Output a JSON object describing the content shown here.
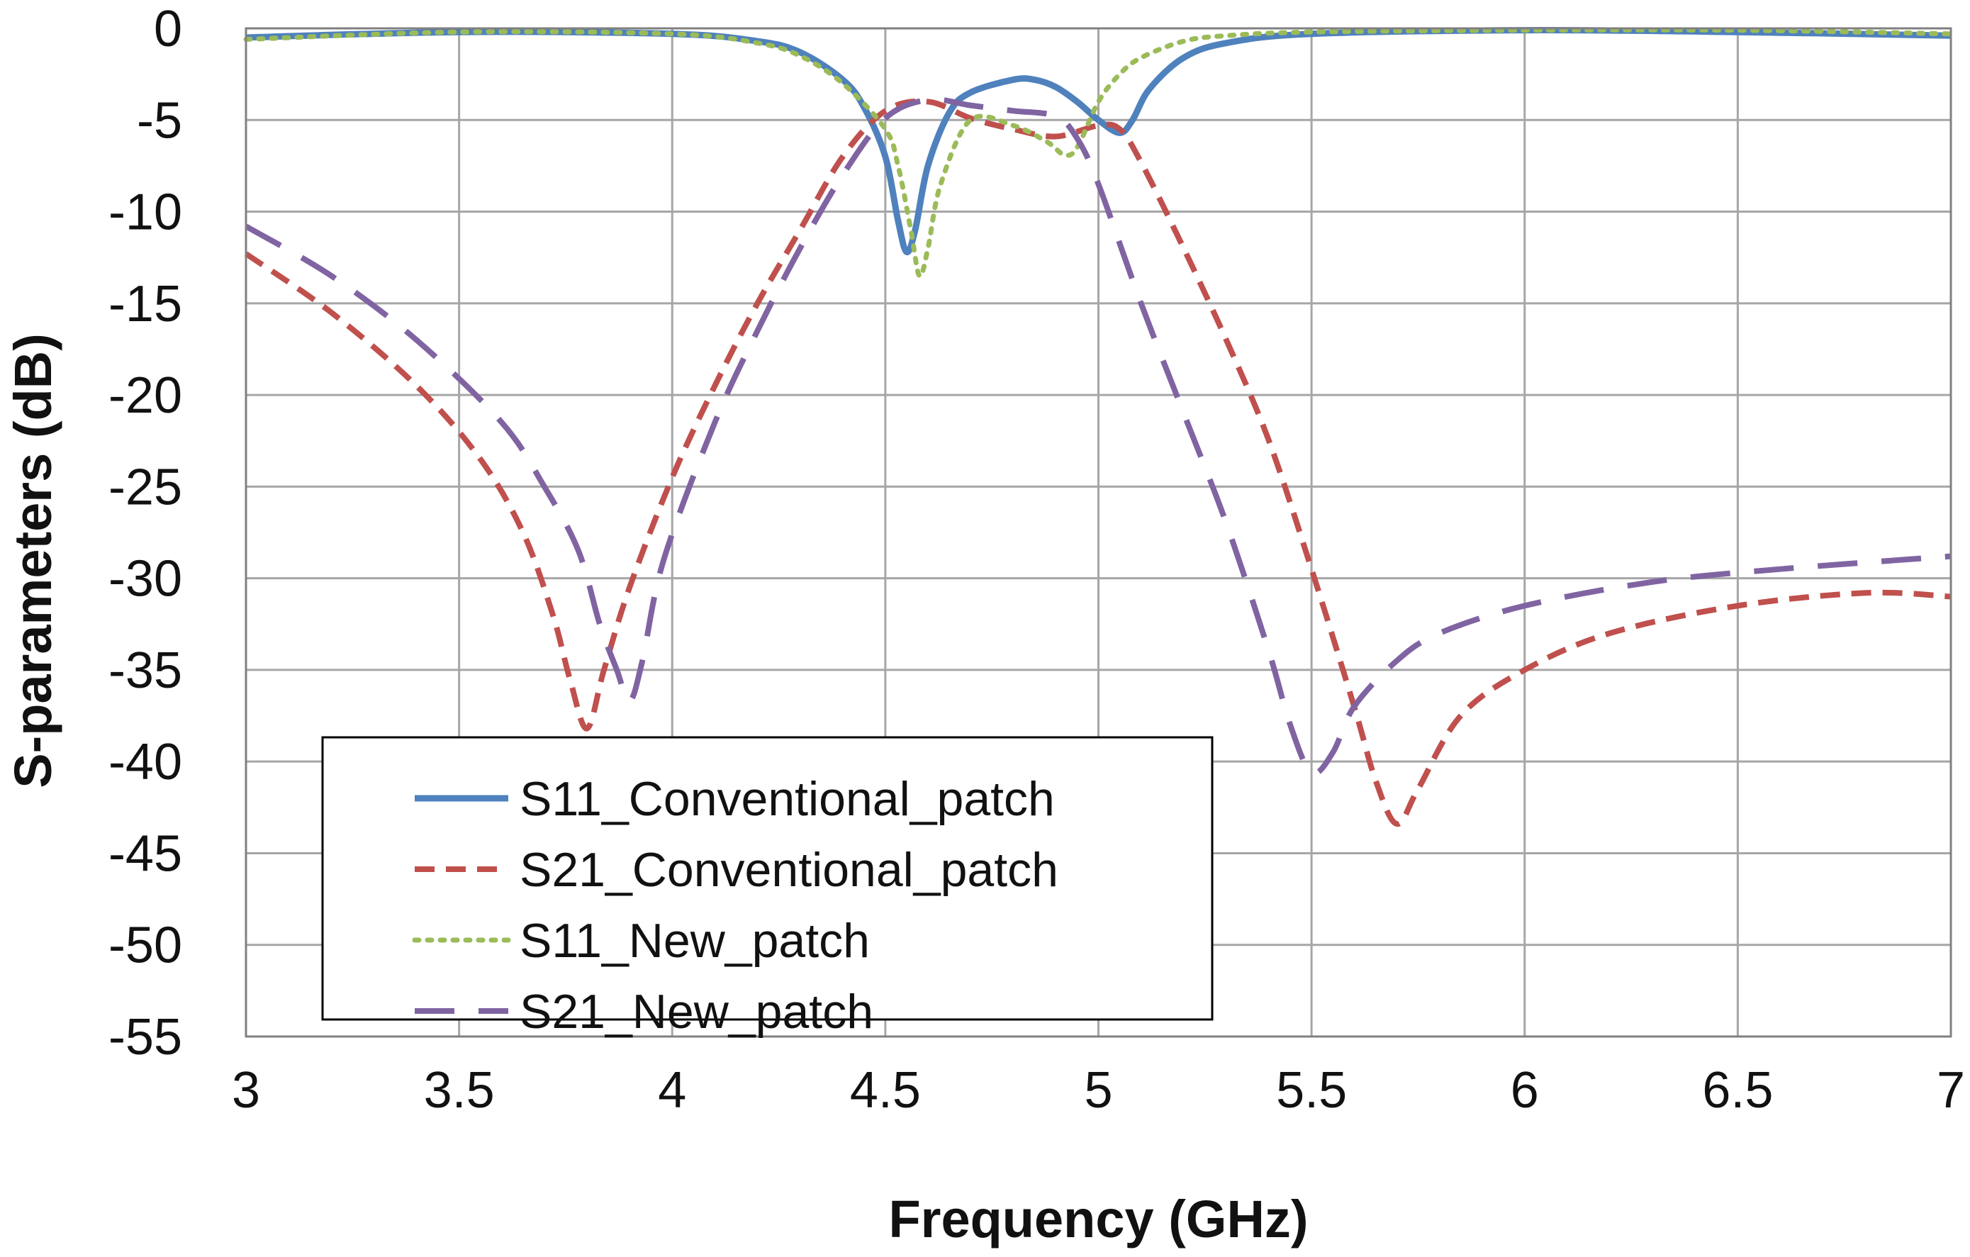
{
  "chart_data": {
    "type": "line",
    "title": "",
    "xlabel": "Frequency (GHz)",
    "ylabel": "S-parameters (dB)",
    "xlim": [
      3,
      7
    ],
    "ylim": [
      -55,
      0
    ],
    "x_ticks": [
      3,
      3.5,
      4,
      4.5,
      5,
      5.5,
      6,
      6.5,
      7
    ],
    "y_ticks": [
      0,
      -5,
      -10,
      -15,
      -20,
      -25,
      -30,
      -35,
      -40,
      -45,
      -50,
      -55
    ],
    "x_tick_labels": [
      "3",
      "3.5",
      "4",
      "4.5",
      "5",
      "5.5",
      "6",
      "6.5",
      "7"
    ],
    "y_tick_labels": [
      "0",
      "-5",
      "-10",
      "-15",
      "-20",
      "-25",
      "-30",
      "-35",
      "-40",
      "-45",
      "-50",
      "-55"
    ],
    "grid": true,
    "legend_position": "lower-left",
    "series": [
      {
        "name": "S11_Conventional_patch",
        "color": "#4f81bd",
        "dash": "solid",
        "points": [
          [
            3.0,
            -0.5
          ],
          [
            3.5,
            -0.2
          ],
          [
            4.0,
            -0.3
          ],
          [
            4.2,
            -0.7
          ],
          [
            4.3,
            -1.3
          ],
          [
            4.4,
            -2.8
          ],
          [
            4.45,
            -4.3
          ],
          [
            4.5,
            -7.0
          ],
          [
            4.53,
            -10.5
          ],
          [
            4.55,
            -12.2
          ],
          [
            4.57,
            -11.0
          ],
          [
            4.6,
            -7.5
          ],
          [
            4.65,
            -4.6
          ],
          [
            4.7,
            -3.5
          ],
          [
            4.8,
            -2.8
          ],
          [
            4.85,
            -2.8
          ],
          [
            4.9,
            -3.2
          ],
          [
            4.95,
            -4.0
          ],
          [
            5.0,
            -5.0
          ],
          [
            5.05,
            -5.7
          ],
          [
            5.08,
            -5.0
          ],
          [
            5.12,
            -3.3
          ],
          [
            5.2,
            -1.6
          ],
          [
            5.3,
            -0.8
          ],
          [
            5.5,
            -0.3
          ],
          [
            6.0,
            -0.1
          ],
          [
            6.5,
            -0.2
          ],
          [
            7.0,
            -0.4
          ]
        ]
      },
      {
        "name": "S21_Conventional_patch",
        "color": "#c0504d",
        "dash": "short-dash",
        "points": [
          [
            3.0,
            -12.3
          ],
          [
            3.2,
            -15.5
          ],
          [
            3.4,
            -19.5
          ],
          [
            3.55,
            -23.5
          ],
          [
            3.65,
            -27.5
          ],
          [
            3.72,
            -32.0
          ],
          [
            3.76,
            -35.5
          ],
          [
            3.8,
            -38.2
          ],
          [
            3.84,
            -35.0
          ],
          [
            3.9,
            -30.5
          ],
          [
            4.0,
            -24.5
          ],
          [
            4.1,
            -19.5
          ],
          [
            4.2,
            -15.0
          ],
          [
            4.3,
            -11.0
          ],
          [
            4.4,
            -7.0
          ],
          [
            4.5,
            -4.5
          ],
          [
            4.6,
            -4.0
          ],
          [
            4.7,
            -4.9
          ],
          [
            4.8,
            -5.5
          ],
          [
            4.9,
            -5.9
          ],
          [
            5.0,
            -5.3
          ],
          [
            5.05,
            -5.5
          ],
          [
            5.1,
            -7.3
          ],
          [
            5.2,
            -12.0
          ],
          [
            5.3,
            -17.0
          ],
          [
            5.4,
            -22.5
          ],
          [
            5.5,
            -29.5
          ],
          [
            5.6,
            -37.0
          ],
          [
            5.65,
            -41.0
          ],
          [
            5.7,
            -43.4
          ],
          [
            5.75,
            -41.5
          ],
          [
            5.85,
            -37.5
          ],
          [
            6.0,
            -35.0
          ],
          [
            6.2,
            -33.0
          ],
          [
            6.5,
            -31.5
          ],
          [
            6.8,
            -30.8
          ],
          [
            7.0,
            -31.0
          ]
        ]
      },
      {
        "name": "S11_New_patch",
        "color": "#9bbb59",
        "dash": "dotted",
        "points": [
          [
            3.0,
            -0.6
          ],
          [
            3.5,
            -0.2
          ],
          [
            4.0,
            -0.3
          ],
          [
            4.2,
            -0.8
          ],
          [
            4.3,
            -1.5
          ],
          [
            4.4,
            -3.0
          ],
          [
            4.5,
            -5.5
          ],
          [
            4.53,
            -7.5
          ],
          [
            4.56,
            -11.0
          ],
          [
            4.58,
            -13.5
          ],
          [
            4.6,
            -12.0
          ],
          [
            4.63,
            -8.5
          ],
          [
            4.7,
            -5.0
          ],
          [
            4.8,
            -5.3
          ],
          [
            4.88,
            -6.2
          ],
          [
            4.92,
            -6.9
          ],
          [
            4.95,
            -6.5
          ],
          [
            5.0,
            -4.0
          ],
          [
            5.05,
            -2.5
          ],
          [
            5.1,
            -1.6
          ],
          [
            5.2,
            -0.7
          ],
          [
            5.3,
            -0.4
          ],
          [
            5.5,
            -0.2
          ],
          [
            6.0,
            -0.1
          ],
          [
            6.5,
            -0.1
          ],
          [
            7.0,
            -0.3
          ]
        ]
      },
      {
        "name": "S21_New_patch",
        "color": "#8064a2",
        "dash": "long-dash",
        "points": [
          [
            3.0,
            -10.8
          ],
          [
            3.2,
            -13.5
          ],
          [
            3.4,
            -17.0
          ],
          [
            3.6,
            -21.5
          ],
          [
            3.7,
            -25.0
          ],
          [
            3.78,
            -28.5
          ],
          [
            3.83,
            -32.5
          ],
          [
            3.87,
            -35.0
          ],
          [
            3.9,
            -36.7
          ],
          [
            3.93,
            -34.5
          ],
          [
            3.98,
            -29.0
          ],
          [
            4.1,
            -21.5
          ],
          [
            4.2,
            -16.5
          ],
          [
            4.3,
            -12.0
          ],
          [
            4.4,
            -8.0
          ],
          [
            4.5,
            -4.9
          ],
          [
            4.6,
            -3.9
          ],
          [
            4.7,
            -4.2
          ],
          [
            4.8,
            -4.5
          ],
          [
            4.9,
            -4.8
          ],
          [
            4.95,
            -6.0
          ],
          [
            5.0,
            -8.5
          ],
          [
            5.1,
            -15.0
          ],
          [
            5.2,
            -21.0
          ],
          [
            5.3,
            -27.0
          ],
          [
            5.4,
            -34.0
          ],
          [
            5.45,
            -38.0
          ],
          [
            5.5,
            -40.6
          ],
          [
            5.55,
            -39.5
          ],
          [
            5.6,
            -37.0
          ],
          [
            5.7,
            -34.5
          ],
          [
            5.8,
            -33.0
          ],
          [
            6.0,
            -31.5
          ],
          [
            6.3,
            -30.2
          ],
          [
            6.6,
            -29.5
          ],
          [
            7.0,
            -28.8
          ]
        ]
      }
    ]
  }
}
